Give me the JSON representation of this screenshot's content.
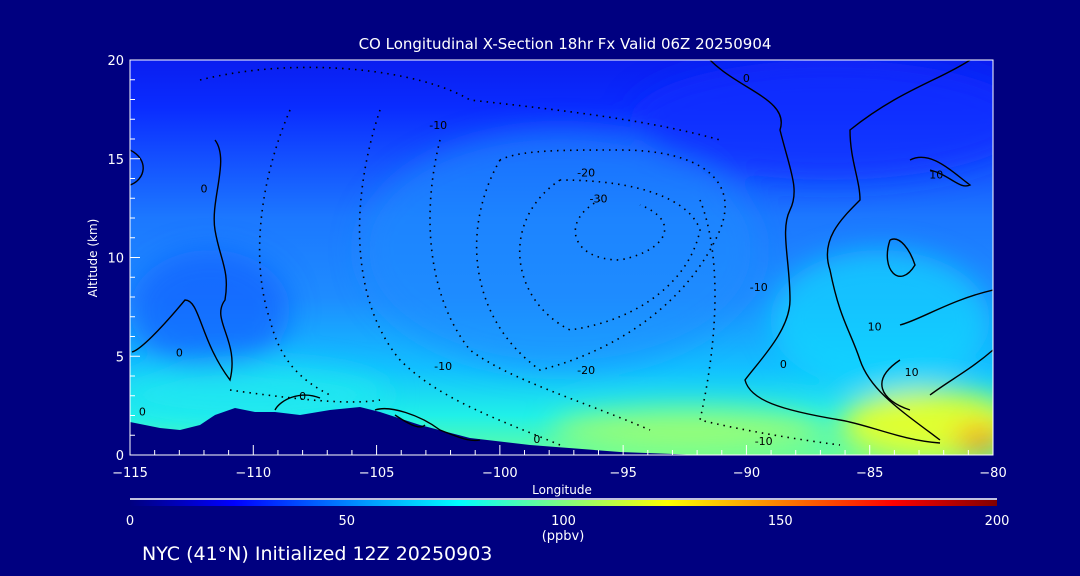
{
  "chart_data": {
    "type": "heatmap",
    "title": "CO Longitudinal X-Section 18hr  Fx Valid 06Z 20250904",
    "xlabel": "Longitude",
    "ylabel": "Altitude (km)",
    "xlim": [
      -115,
      -80
    ],
    "ylim": [
      0,
      20
    ],
    "xticks": [
      -115,
      -110,
      -105,
      -100,
      -95,
      -90,
      -85,
      -80
    ],
    "yticks": [
      0,
      5,
      10,
      15,
      20
    ],
    "colorbar": {
      "label": "(ppbv)",
      "range": [
        0,
        200
      ],
      "ticks": [
        0,
        50,
        100,
        150,
        200
      ],
      "colors": [
        "#000080",
        "#0000ff",
        "#00a0ff",
        "#00ffff",
        "#80ff80",
        "#ffff00",
        "#ff8000",
        "#ff0000",
        "#800000"
      ]
    },
    "contour_labels": [
      {
        "text": "0",
        "lon": -112,
        "alt": 13.5
      },
      {
        "text": "-10",
        "lon": -102.5,
        "alt": 16.7
      },
      {
        "text": "-20",
        "lon": -96.5,
        "alt": 14.3
      },
      {
        "text": "-30",
        "lon": -96,
        "alt": 13.0
      },
      {
        "text": "-10",
        "lon": -89.5,
        "alt": 8.5
      },
      {
        "text": "0",
        "lon": -88.5,
        "alt": 4.6
      },
      {
        "text": "-20",
        "lon": -96.5,
        "alt": 4.3
      },
      {
        "text": "-10",
        "lon": -102.3,
        "alt": 4.5
      },
      {
        "text": "0",
        "lon": -113,
        "alt": 5.2
      },
      {
        "text": "0",
        "lon": -114.5,
        "alt": 2.2
      },
      {
        "text": "0",
        "lon": -108,
        "alt": 3.0
      },
      {
        "text": "0",
        "lon": -98.5,
        "alt": 0.8
      },
      {
        "text": "-10",
        "lon": -89.3,
        "alt": 0.7
      },
      {
        "text": "10",
        "lon": -84.8,
        "alt": 6.5
      },
      {
        "text": "10",
        "lon": -83.3,
        "alt": 4.2
      },
      {
        "text": "10",
        "lon": -82.3,
        "alt": 14.2
      },
      {
        "text": "0",
        "lon": -90,
        "alt": 19.1
      }
    ]
  },
  "footer": "NYC (41°N) Initialized 12Z 20250903"
}
